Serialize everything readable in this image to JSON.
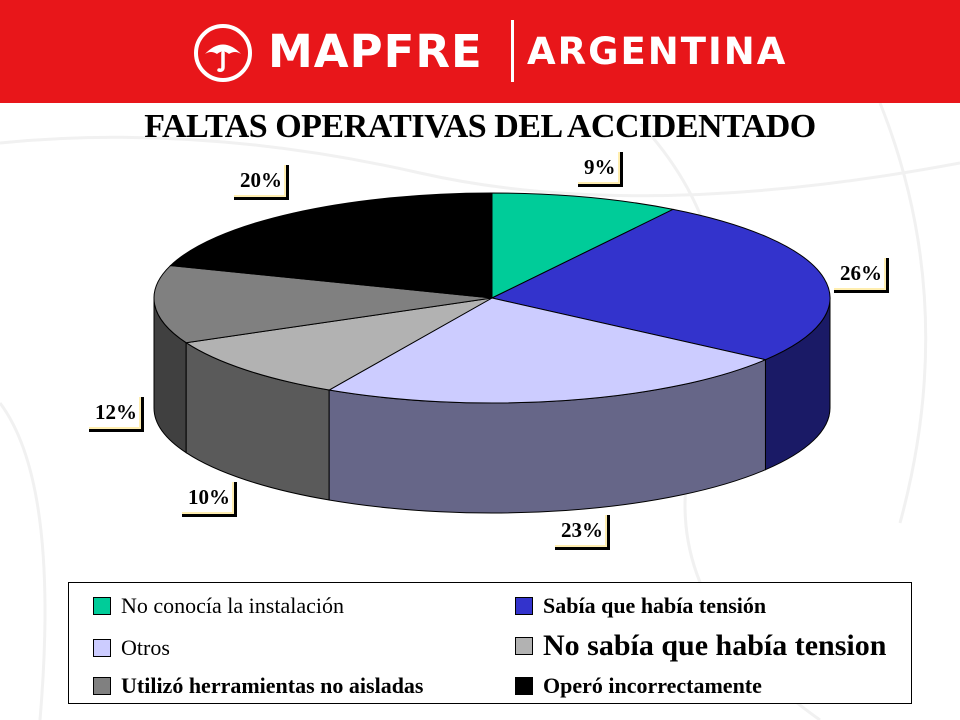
{
  "header": {
    "brand": "MAPFRE",
    "region": "ARGENTINA",
    "background_color": "#e8161a",
    "logo_icon": "mapfre-umbrella-logo"
  },
  "chart_data": {
    "type": "pie",
    "title": "FALTAS OPERATIVAS DEL ACCIDENTADO",
    "style": "3d-exploded-none",
    "slices": [
      {
        "label": "No conocía la instalación",
        "value": 9,
        "display": "9%",
        "color": "#00cc99",
        "side_color": "#007755"
      },
      {
        "label": "Sabía que había tensión",
        "value": 26,
        "display": "26%",
        "color": "#3333cc",
        "side_color": "#1a1a66"
      },
      {
        "label": "Otros",
        "value": 23,
        "display": "23%",
        "color": "#ccccff",
        "side_color": "#666688"
      },
      {
        "label": "No sabía que había tension",
        "value": 10,
        "display": "10%",
        "color": "#b2b2b2",
        "side_color": "#5a5a5a"
      },
      {
        "label": "Utilizó herramientas no aisladas",
        "value": 12,
        "display": "12%",
        "color": "#808080",
        "side_color": "#404040"
      },
      {
        "label": "Operó incorrectamente",
        "value": 20,
        "display": "20%",
        "color": "#000000",
        "side_color": "#000000"
      }
    ],
    "legend": {
      "placement": "bottom",
      "columns": [
        [
          "No conocía la instalación",
          "Otros",
          "Utilizó herramientas no aisladas"
        ],
        [
          "Sabía que había tensión",
          "No sabía que había tension",
          "Operó incorrectamente"
        ]
      ]
    }
  }
}
